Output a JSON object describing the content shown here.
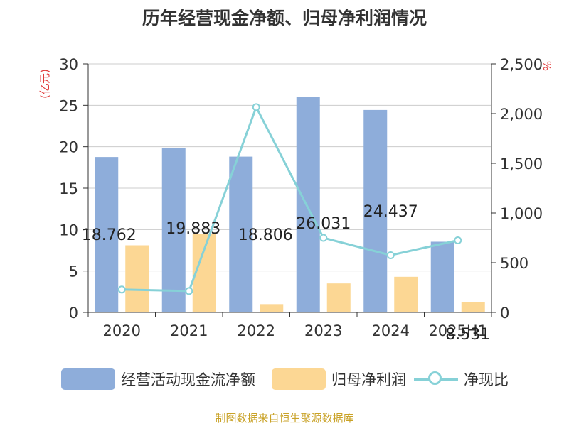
{
  "title": "历年经营现金净额、归母净利润情况",
  "source": "制图数据来自恒生聚源数据库",
  "colors": {
    "cash_bar": "#8eadda",
    "profit_bar": "#fcd794",
    "ratio_line": "#86d1d7",
    "axis_unit": "#e03c3c"
  },
  "chart_data": {
    "type": "bar",
    "title": "历年经营现金净额、归母净利润情况",
    "categories": [
      "2020",
      "2021",
      "2022",
      "2023",
      "2024",
      "2025H1"
    ],
    "series": [
      {
        "name": "经营活动现金流净额",
        "type": "bar",
        "axis": "left",
        "values": [
          18.762,
          19.883,
          18.806,
          26.031,
          24.437,
          8.531
        ],
        "labels": [
          "18.762",
          "19.883",
          "18.806",
          "26.031",
          "24.437",
          "8.531"
        ]
      },
      {
        "name": "归母净利润",
        "type": "bar",
        "axis": "left",
        "values": [
          8.1,
          9.5,
          1.0,
          3.5,
          4.3,
          1.2
        ]
      },
      {
        "name": "净现比",
        "type": "line",
        "axis": "right",
        "values": [
          230,
          215,
          2065,
          750,
          575,
          725
        ]
      }
    ],
    "left_axis": {
      "unit": "(亿元)",
      "min": 0,
      "max": 30,
      "ticks": [
        "0",
        "5",
        "10",
        "15",
        "20",
        "25",
        "30"
      ]
    },
    "right_axis": {
      "unit": "%",
      "min": 0,
      "max": 2500,
      "ticks": [
        "0",
        "500",
        "1,000",
        "1,500",
        "2,000",
        "2,500"
      ]
    },
    "legend": [
      "经营活动现金流净额",
      "归母净利润",
      "净现比"
    ],
    "grid": true
  }
}
